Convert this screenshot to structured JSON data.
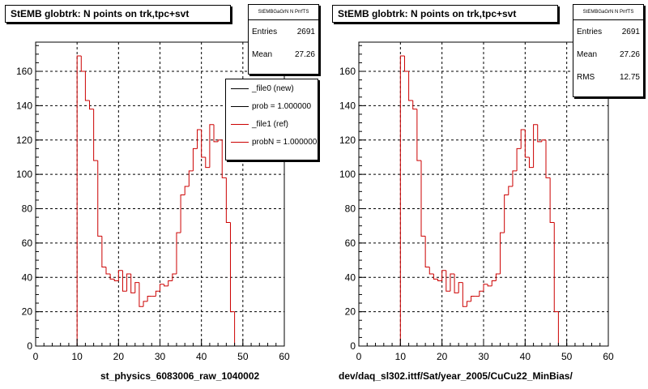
{
  "chart_data": [
    {
      "type": "histogram",
      "title": "StEMB globtrk: N points on trk,tpc+svt",
      "xlabel": "st_physics_6083006_raw_1040002",
      "xlim": [
        0,
        60
      ],
      "ylim": [
        0,
        177
      ],
      "x_ticks": [
        0,
        10,
        20,
        30,
        40,
        50,
        60
      ],
      "y_ticks": [
        0,
        20,
        40,
        60,
        80,
        100,
        120,
        140,
        160
      ],
      "grid": true,
      "bins": [
        0,
        1,
        2,
        3,
        4,
        5,
        6,
        7,
        8,
        9,
        10,
        11,
        12,
        13,
        14,
        15,
        16,
        17,
        18,
        19,
        20,
        21,
        22,
        23,
        24,
        25,
        26,
        27,
        28,
        29,
        30,
        31,
        32,
        33,
        34,
        35,
        36,
        37,
        38,
        39,
        40,
        41,
        42,
        43,
        44,
        45,
        46,
        47,
        48,
        49,
        50,
        51,
        52,
        53,
        54,
        55,
        56,
        57,
        58,
        59
      ],
      "series": [
        {
          "values": [
            0,
            0,
            0,
            0,
            0,
            0,
            0,
            0,
            0,
            0,
            169,
            160,
            143,
            138,
            108,
            64,
            46,
            42,
            39,
            38,
            44,
            32,
            42,
            31,
            37,
            23,
            26,
            29,
            29,
            32,
            36,
            35,
            38,
            42,
            66,
            88,
            93,
            102,
            115,
            126,
            110,
            104,
            129,
            119,
            120,
            98,
            72,
            20,
            0,
            0,
            0,
            0,
            0,
            0,
            0,
            0,
            0,
            0,
            0,
            0
          ],
          "color": "#cc0000"
        }
      ],
      "stats_box": {
        "header": "StEMBGaGrN N PrrfTS",
        "rows": [
          {
            "label": "Entries",
            "value": "2691"
          },
          {
            "label": "Mean",
            "value": "27.26"
          }
        ]
      },
      "legend": {
        "entries": [
          {
            "label": "_file0 (new)",
            "color": "#000000"
          },
          {
            "label": "prob = 1.000000",
            "color": "#000000"
          },
          {
            "label": "_file1 (ref)",
            "color": "#cc0000"
          },
          {
            "label": "probN = 1.000000",
            "color": "#cc0000"
          }
        ]
      }
    },
    {
      "type": "histogram",
      "title": "StEMB globtrk: N points on trk,tpc+svt",
      "xlabel": "dev/daq_sl302.ittf/Sat/year_2005/CuCu22_MinBias/",
      "xlim": [
        0,
        60
      ],
      "ylim": [
        0,
        177
      ],
      "x_ticks": [
        0,
        10,
        20,
        30,
        40,
        50,
        60
      ],
      "y_ticks": [
        0,
        20,
        40,
        60,
        80,
        100,
        120,
        140,
        160
      ],
      "grid": true,
      "bins": [
        0,
        1,
        2,
        3,
        4,
        5,
        6,
        7,
        8,
        9,
        10,
        11,
        12,
        13,
        14,
        15,
        16,
        17,
        18,
        19,
        20,
        21,
        22,
        23,
        24,
        25,
        26,
        27,
        28,
        29,
        30,
        31,
        32,
        33,
        34,
        35,
        36,
        37,
        38,
        39,
        40,
        41,
        42,
        43,
        44,
        45,
        46,
        47,
        48,
        49,
        50,
        51,
        52,
        53,
        54,
        55,
        56,
        57,
        58,
        59
      ],
      "series": [
        {
          "values": [
            0,
            0,
            0,
            0,
            0,
            0,
            0,
            0,
            0,
            0,
            169,
            160,
            143,
            138,
            108,
            64,
            46,
            42,
            39,
            38,
            44,
            32,
            42,
            31,
            37,
            23,
            26,
            29,
            29,
            32,
            36,
            35,
            38,
            42,
            66,
            88,
            93,
            102,
            115,
            126,
            110,
            104,
            129,
            119,
            120,
            98,
            72,
            20,
            0,
            0,
            0,
            0,
            0,
            0,
            0,
            0,
            0,
            0,
            0,
            0
          ],
          "color": "#cc0000"
        }
      ],
      "stats_box": {
        "header": "StEMBGaGrN N PrrfTS",
        "rows": [
          {
            "label": "Entries",
            "value": "2691"
          },
          {
            "label": "Mean",
            "value": "27.26"
          },
          {
            "label": "RMS",
            "value": "12.75"
          }
        ]
      }
    }
  ]
}
